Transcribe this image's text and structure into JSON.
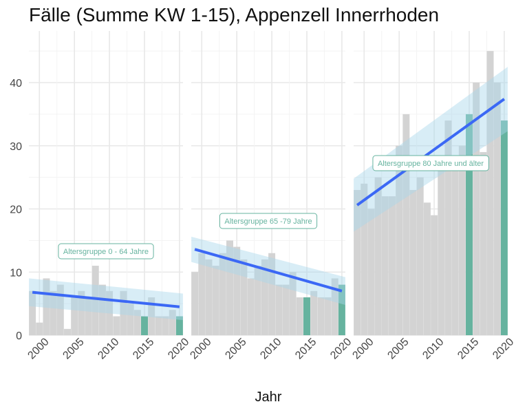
{
  "title": "Fälle (Summe KW 1-15), Appenzell Innerrhoden",
  "chart_data": {
    "type": "bar",
    "title": "Fälle (Summe KW 1-15), Appenzell Innerrhoden",
    "xlabel": "Jahr",
    "ylabel": "",
    "x_ticks": [
      "2000",
      "2005",
      "2010",
      "2015",
      "2020"
    ],
    "y_ticks": [
      "0",
      "10",
      "20",
      "30",
      "40"
    ],
    "xlim": [
      1998.5,
      2020.5
    ],
    "ylim": [
      0,
      48
    ],
    "grid": true,
    "colors": {
      "bar": "#d3d3d3",
      "highlight": "#66b39f",
      "trend": "#3b68f5",
      "ribbon": "#a9d6ea",
      "annotation": "#66b39f"
    },
    "panels": [
      {
        "label": "Altersgruppe 0 - 64 Jahre",
        "x": [
          1999,
          2000,
          2001,
          2002,
          2003,
          2004,
          2005,
          2006,
          2007,
          2008,
          2009,
          2010,
          2011,
          2012,
          2013,
          2014,
          2015,
          2016,
          2017,
          2018,
          2019,
          2020
        ],
        "values": [
          7,
          2,
          9,
          7,
          8,
          1,
          6,
          7,
          6,
          11,
          8,
          7,
          3,
          7,
          5,
          4,
          3,
          6,
          3,
          3,
          4,
          3
        ],
        "highlight_years": [
          2015,
          2020
        ],
        "trend": {
          "start": [
            1999,
            6.8
          ],
          "end": [
            2020,
            4.5
          ]
        },
        "ribbon": {
          "upper_start": 9.0,
          "upper_end": 6.6,
          "lower_start": 4.6,
          "lower_end": 2.4
        }
      },
      {
        "label": "Altersgruppe 65 -79 Jahre",
        "x": [
          1999,
          2000,
          2001,
          2002,
          2003,
          2004,
          2005,
          2006,
          2007,
          2008,
          2009,
          2010,
          2011,
          2012,
          2013,
          2014,
          2015,
          2016,
          2017,
          2018,
          2019,
          2020
        ],
        "values": [
          10,
          13,
          12,
          11,
          13,
          15,
          14,
          12,
          9,
          11,
          12,
          13,
          8,
          8,
          10,
          6,
          6,
          7,
          6,
          6,
          9,
          8
        ],
        "highlight_years": [
          2015,
          2020
        ],
        "trend": {
          "start": [
            1999,
            13.6
          ],
          "end": [
            2020,
            7.0
          ]
        },
        "ribbon": {
          "upper_start": 15.6,
          "upper_end": 9.2,
          "lower_start": 11.6,
          "lower_end": 4.8
        }
      },
      {
        "label": "Altersgruppe 80 Jahre und älter",
        "x": [
          1999,
          2000,
          2001,
          2002,
          2003,
          2004,
          2005,
          2006,
          2007,
          2008,
          2009,
          2010,
          2011,
          2012,
          2013,
          2014,
          2015,
          2016,
          2017,
          2018,
          2019,
          2020
        ],
        "values": [
          23,
          24,
          20,
          25,
          22,
          22,
          30,
          35,
          23,
          25,
          21,
          19,
          26,
          34,
          27,
          30,
          35,
          40,
          29,
          45,
          40,
          34
        ],
        "highlight_years": [
          2015,
          2020
        ],
        "trend": {
          "start": [
            1999,
            20.6
          ],
          "end": [
            2020,
            37.4
          ]
        },
        "ribbon": {
          "upper_start": 24.8,
          "upper_end": 42.5,
          "lower_start": 16.4,
          "lower_end": 32.3
        }
      }
    ]
  }
}
